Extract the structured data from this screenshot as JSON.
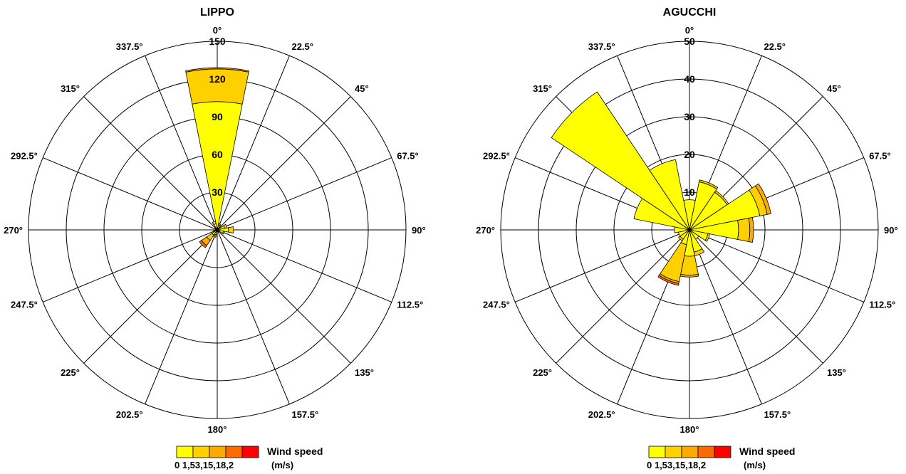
{
  "chart_data": [
    {
      "type": "wind-rose",
      "title": "LIPPO",
      "direction_labels": [
        "0°",
        "22.5°",
        "45°",
        "67.5°",
        "90°",
        "112.5°",
        "135°",
        "157.5°",
        "180°",
        "202.5°",
        "225°",
        "247.5°",
        "270°",
        "292.5°",
        "315°",
        "337.5°"
      ],
      "radial_ticks": [
        30,
        60,
        90,
        120,
        150
      ],
      "rmax": 150,
      "speed_bins": [
        "0",
        "1,5",
        "3,1",
        "5,1",
        "8,2"
      ],
      "colors": [
        "#ffff00",
        "#ffd000",
        "#ffaa00",
        "#ff6a00",
        "#ff0000"
      ],
      "sectors": [
        {
          "dir": 0,
          "values": [
            102,
            26,
            1,
            0,
            0
          ]
        },
        {
          "dir": 22.5,
          "values": [
            4,
            1,
            0,
            0,
            0
          ]
        },
        {
          "dir": 45,
          "values": [
            1,
            0,
            0,
            0,
            0
          ]
        },
        {
          "dir": 67.5,
          "values": [
            6,
            2,
            0,
            0,
            0
          ]
        },
        {
          "dir": 90,
          "values": [
            9,
            4,
            0,
            0,
            0
          ]
        },
        {
          "dir": 112.5,
          "values": [
            5,
            1,
            0,
            0,
            0
          ]
        },
        {
          "dir": 135,
          "values": [
            2,
            0,
            0,
            0,
            0
          ]
        },
        {
          "dir": 157.5,
          "values": [
            1,
            0,
            0,
            0,
            0
          ]
        },
        {
          "dir": 180,
          "values": [
            1,
            0,
            0,
            0,
            0
          ]
        },
        {
          "dir": 202.5,
          "values": [
            4,
            1,
            1,
            0,
            0
          ]
        },
        {
          "dir": 225,
          "values": [
            5,
            5,
            5,
            2,
            0
          ]
        },
        {
          "dir": 247.5,
          "values": [
            2,
            1,
            0,
            0,
            0
          ]
        },
        {
          "dir": 270,
          "values": [
            1,
            0,
            0,
            0,
            0
          ]
        },
        {
          "dir": 292.5,
          "values": [
            1,
            0,
            0,
            0,
            0
          ]
        },
        {
          "dir": 315,
          "values": [
            2,
            0,
            0,
            0,
            0
          ]
        },
        {
          "dir": 337.5,
          "values": [
            5,
            2,
            0,
            0,
            0
          ]
        }
      ],
      "legend": {
        "title": "Wind speed",
        "unit": "(m/s)",
        "ticks": "0  1,53,15,18,2"
      }
    },
    {
      "type": "wind-rose",
      "title": "AGUCCHI",
      "direction_labels": [
        "0°",
        "22.5°",
        "45°",
        "67.5°",
        "90°",
        "112.5°",
        "135°",
        "157.5°",
        "180°",
        "202.5°",
        "225°",
        "247.5°",
        "270°",
        "292.5°",
        "315°",
        "337.5°"
      ],
      "radial_ticks": [
        10,
        20,
        30,
        40,
        50
      ],
      "rmax": 50,
      "speed_bins": [
        "0",
        "1,5",
        "3,1",
        "5,1",
        "8,2"
      ],
      "colors": [
        "#ffff00",
        "#ffd000",
        "#ffaa00",
        "#ff6a00",
        "#ff0000"
      ],
      "sectors": [
        {
          "dir": 0,
          "values": [
            8,
            0,
            0,
            0,
            0
          ]
        },
        {
          "dir": 22.5,
          "values": [
            13,
            0.5,
            0,
            0,
            0
          ]
        },
        {
          "dir": 45,
          "values": [
            12,
            0.5,
            0,
            0,
            0
          ]
        },
        {
          "dir": 67.5,
          "values": [
            19,
            2,
            1,
            0,
            0
          ]
        },
        {
          "dir": 90,
          "values": [
            13,
            3,
            1,
            0,
            0
          ]
        },
        {
          "dir": 112.5,
          "values": [
            5,
            0.5,
            0,
            0,
            0
          ]
        },
        {
          "dir": 135,
          "values": [
            3,
            0,
            0,
            0,
            0
          ]
        },
        {
          "dir": 157.5,
          "values": [
            6,
            1,
            0,
            0,
            0
          ]
        },
        {
          "dir": 180,
          "values": [
            7,
            5,
            0.5,
            0,
            0
          ]
        },
        {
          "dir": 202.5,
          "values": [
            4,
            10,
            0.5,
            0.5,
            0
          ]
        },
        {
          "dir": 225,
          "values": [
            3,
            0.5,
            0,
            0,
            0
          ]
        },
        {
          "dir": 247.5,
          "values": [
            3,
            0,
            0,
            0,
            0
          ]
        },
        {
          "dir": 270,
          "values": [
            4,
            0,
            0,
            0,
            0
          ]
        },
        {
          "dir": 292.5,
          "values": [
            15,
            0,
            0,
            0,
            0
          ]
        },
        {
          "dir": 315,
          "values": [
            44,
            0,
            0,
            0,
            0
          ]
        },
        {
          "dir": 337.5,
          "values": [
            19,
            0,
            0,
            0,
            0
          ]
        }
      ],
      "legend": {
        "title": "Wind speed",
        "unit": "(m/s)",
        "ticks": "0  1,53,15,18,2"
      }
    }
  ]
}
